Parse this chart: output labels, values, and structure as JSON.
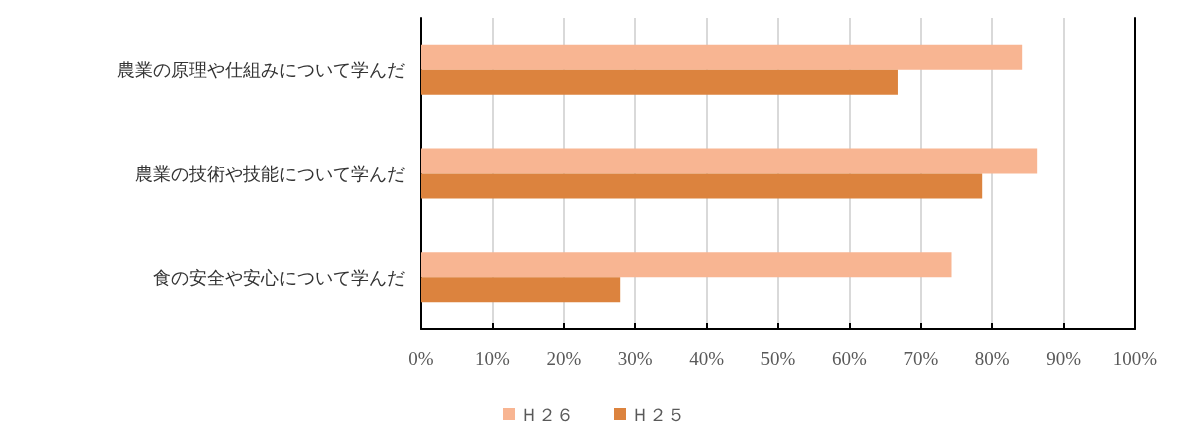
{
  "chart_data": {
    "type": "bar",
    "orientation": "horizontal",
    "categories": [
      "農業の原理や仕組みについて学んだ",
      "農業の技術や技能について学んだ",
      "食の安全や安心について学んだ"
    ],
    "series": [
      {
        "name": "Ｈ２６",
        "color": "#f8b592",
        "values": [
          84.2,
          86.3,
          74.3
        ]
      },
      {
        "name": "Ｈ２５",
        "color": "#dc833e",
        "values": [
          66.8,
          78.6,
          27.9
        ]
      }
    ],
    "xlim": [
      0,
      100
    ],
    "xticks": [
      {
        "value": 0,
        "label": "0%"
      },
      {
        "value": 10,
        "label": "10%"
      },
      {
        "value": 20,
        "label": "20%"
      },
      {
        "value": 30,
        "label": "30%"
      },
      {
        "value": 40,
        "label": "40%"
      },
      {
        "value": 50,
        "label": "50%"
      },
      {
        "value": 60,
        "label": "60%"
      },
      {
        "value": 70,
        "label": "70%"
      },
      {
        "value": 80,
        "label": "80%"
      },
      {
        "value": 90,
        "label": "90%"
      },
      {
        "value": 100,
        "label": "100%"
      }
    ],
    "grid": "x",
    "legend": "bottom"
  }
}
